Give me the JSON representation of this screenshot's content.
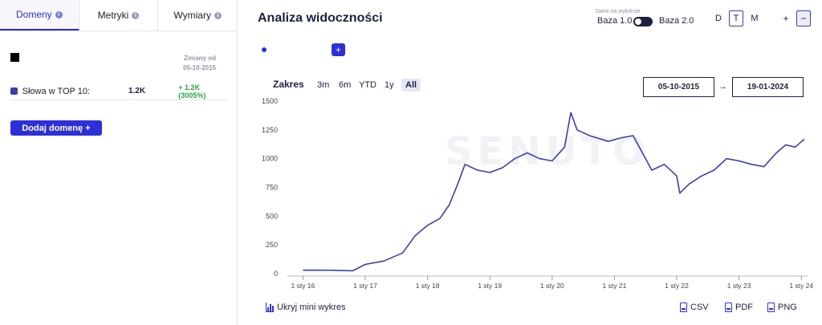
{
  "left_panel": {
    "tabs": [
      {
        "label": "Domeny",
        "active": true
      },
      {
        "label": "Metryki",
        "active": false
      },
      {
        "label": "Wymiary",
        "active": false
      }
    ],
    "changes_header": [
      "Zmiany od",
      "05-10-2015"
    ],
    "metric_row": {
      "label": "Słowa w TOP 10:",
      "value": "1.2K",
      "change": "+ 1.2K (3005%)"
    },
    "add_domain_label": "Dodaj domenę +"
  },
  "header": {
    "title": "Analiza widoczności",
    "data_source_label": "Dane na wykresie",
    "baza_left": "Baza 1.0",
    "baza_right": "Baza 2.0",
    "granularity": [
      "D",
      "T",
      "M"
    ],
    "granularity_selected": "T",
    "zoom_in": "+",
    "zoom_out": "−"
  },
  "add_series_label": "+",
  "range": {
    "label": "Zakres",
    "options": [
      "3m",
      "6m",
      "YTD",
      "1y",
      "All"
    ],
    "selected": "All",
    "from": "05-10-2015",
    "to": "19-01-2024",
    "arrow": "→"
  },
  "footer": {
    "hide_chart": "Ukryj mini wykres",
    "exports": [
      "CSV",
      "PDF",
      "PNG"
    ]
  },
  "colors": {
    "accent": "#2d2fd9",
    "line": "#3c3fa8",
    "positive": "#26a64a"
  },
  "chart_data": {
    "type": "line",
    "watermark": "SENUTO",
    "ylim": [
      0,
      1500
    ],
    "y_ticks": [
      0,
      250,
      500,
      750,
      1000,
      1250,
      1500
    ],
    "x_ticks": [
      "1 sty 16",
      "1 sty 17",
      "1 sty 18",
      "1 sty 19",
      "1 sty 20",
      "1 sty 21",
      "1 sty 22",
      "1 sty 23",
      "1 sty 24"
    ],
    "series": [
      {
        "values": [
          {
            "x": 2016.0,
            "y": 30
          },
          {
            "x": 2016.4,
            "y": 30
          },
          {
            "x": 2016.8,
            "y": 25
          },
          {
            "x": 2017.0,
            "y": 80
          },
          {
            "x": 2017.3,
            "y": 110
          },
          {
            "x": 2017.6,
            "y": 180
          },
          {
            "x": 2017.8,
            "y": 330
          },
          {
            "x": 2018.0,
            "y": 420
          },
          {
            "x": 2018.2,
            "y": 480
          },
          {
            "x": 2018.35,
            "y": 600
          },
          {
            "x": 2018.5,
            "y": 800
          },
          {
            "x": 2018.6,
            "y": 950
          },
          {
            "x": 2018.8,
            "y": 900
          },
          {
            "x": 2019.0,
            "y": 880
          },
          {
            "x": 2019.2,
            "y": 920
          },
          {
            "x": 2019.4,
            "y": 1000
          },
          {
            "x": 2019.6,
            "y": 1050
          },
          {
            "x": 2019.8,
            "y": 1000
          },
          {
            "x": 2020.0,
            "y": 980
          },
          {
            "x": 2020.2,
            "y": 1100
          },
          {
            "x": 2020.3,
            "y": 1400
          },
          {
            "x": 2020.4,
            "y": 1250
          },
          {
            "x": 2020.6,
            "y": 1200
          },
          {
            "x": 2020.9,
            "y": 1150
          },
          {
            "x": 2021.1,
            "y": 1180
          },
          {
            "x": 2021.3,
            "y": 1200
          },
          {
            "x": 2021.45,
            "y": 1050
          },
          {
            "x": 2021.6,
            "y": 900
          },
          {
            "x": 2021.8,
            "y": 950
          },
          {
            "x": 2022.0,
            "y": 850
          },
          {
            "x": 2022.05,
            "y": 700
          },
          {
            "x": 2022.2,
            "y": 780
          },
          {
            "x": 2022.4,
            "y": 850
          },
          {
            "x": 2022.6,
            "y": 900
          },
          {
            "x": 2022.8,
            "y": 1000
          },
          {
            "x": 2023.0,
            "y": 980
          },
          {
            "x": 2023.2,
            "y": 950
          },
          {
            "x": 2023.4,
            "y": 930
          },
          {
            "x": 2023.6,
            "y": 1050
          },
          {
            "x": 2023.75,
            "y": 1120
          },
          {
            "x": 2023.9,
            "y": 1100
          },
          {
            "x": 2024.05,
            "y": 1170
          }
        ]
      }
    ]
  }
}
